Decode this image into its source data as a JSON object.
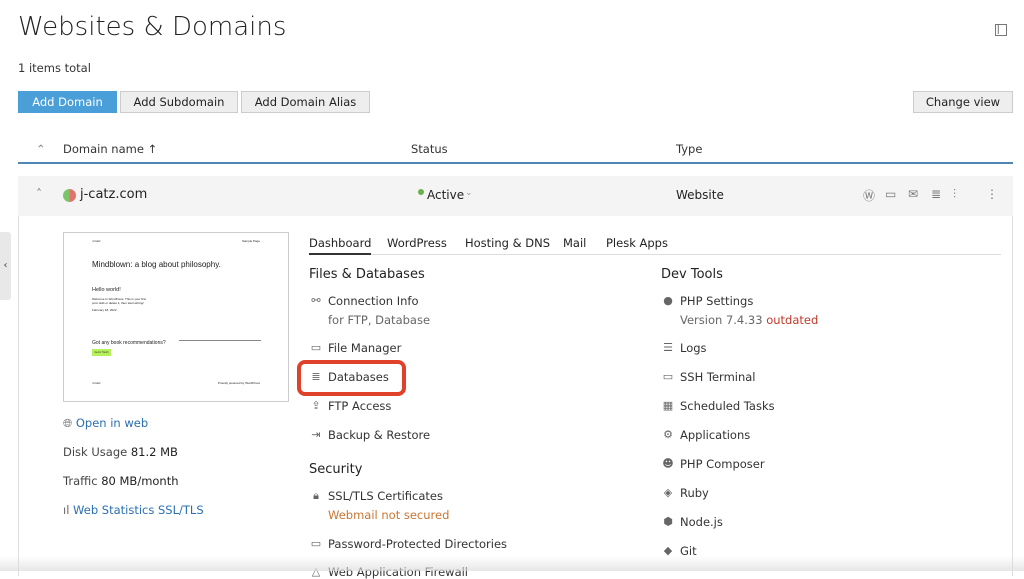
{
  "page": {
    "title": "Websites & Domains",
    "total": "1 items total",
    "collapse_icon": "sidebar-collapse-icon"
  },
  "toolbar": {
    "add_domain": "Add Domain",
    "add_subdomain": "Add Subdomain",
    "add_alias": "Add Domain Alias",
    "change_view": "Change view"
  },
  "table": {
    "headers": {
      "name": "Domain name ↑",
      "status": "Status",
      "type": "Type"
    }
  },
  "domain": {
    "name": "j-catz.com",
    "status": "Active",
    "type": "Website",
    "actions": [
      "wordpress-icon",
      "folder-icon",
      "mail-icon",
      "database-icon",
      "settings-icon",
      "more-icon"
    ]
  },
  "preview": {
    "site_name": "J-Catz",
    "nav": "Sample Page",
    "heading": "Mindblown: a blog about philosophy.",
    "post_title": "Hello world!",
    "post_text": "Welcome to WordPress. This is your first post. Edit or delete it, then start writing!",
    "date": "February 18, 2022",
    "cta": "Got any book recommendations?",
    "cta_button": "Get in Touch",
    "footer_left": "J-Catz",
    "footer_right": "Proudly powered by WordPress",
    "accent": "#b5f25a"
  },
  "side": {
    "open": "Open in web",
    "disk_label": "Disk Usage",
    "disk": "81.2 MB",
    "traffic_label": "Traffic",
    "traffic": "80 MB/month",
    "stats": "Web Statistics SSL/TLS"
  },
  "tabs": [
    "Dashboard",
    "WordPress",
    "Hosting & DNS",
    "Mail",
    "Plesk Apps"
  ],
  "files": {
    "title": "Files & Databases",
    "items": [
      {
        "label": "Connection Info",
        "sub": "for FTP, Database"
      },
      {
        "label": "File Manager"
      },
      {
        "label": "Databases"
      },
      {
        "label": "FTP Access"
      },
      {
        "label": "Backup & Restore"
      }
    ]
  },
  "security": {
    "title": "Security",
    "items": [
      {
        "label": "SSL/TLS Certificates",
        "sub": "Webmail not secured"
      },
      {
        "label": "Password-Protected Directories"
      },
      {
        "label": "Web Application Firewall"
      }
    ]
  },
  "dev": {
    "title": "Dev Tools",
    "items": [
      {
        "label": "PHP Settings",
        "sub": "Version 7.4.33",
        "sub_warn": "outdated"
      },
      {
        "label": "Logs"
      },
      {
        "label": "SSH Terminal"
      },
      {
        "label": "Scheduled Tasks"
      },
      {
        "label": "Applications"
      },
      {
        "label": "PHP Composer"
      },
      {
        "label": "Ruby"
      },
      {
        "label": "Node.js"
      },
      {
        "label": "Git"
      }
    ]
  },
  "colors": {
    "primary": "#4a9fd8",
    "highlight": "#e0412b",
    "active": "#6ab04c",
    "warning": "#c87533"
  }
}
